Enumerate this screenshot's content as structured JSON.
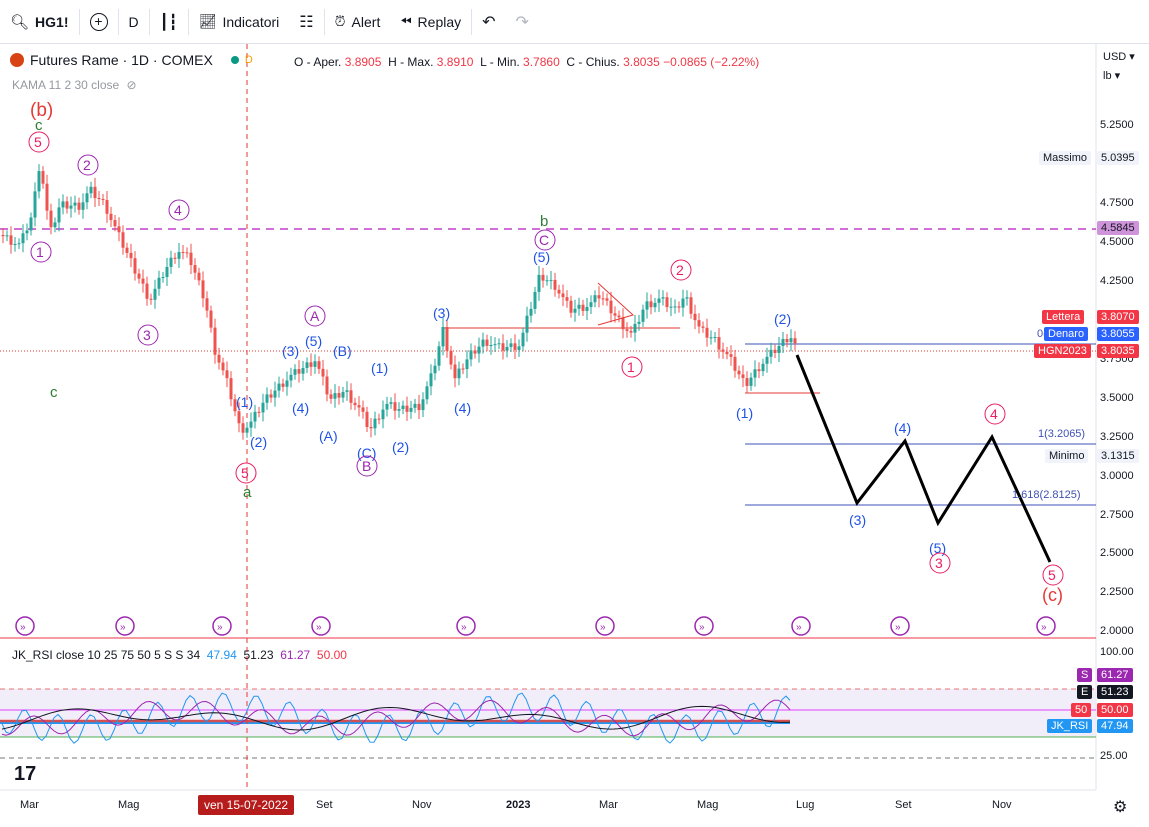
{
  "toolbar": {
    "symbol": "HG1!",
    "interval": "D",
    "indicators_label": "Indicatori",
    "alert_label": "Alert",
    "replay_label": "Replay"
  },
  "legend": {
    "title": "Futures Rame · 1D · COMEX",
    "badge": "D",
    "open_label": "O - Aper.",
    "open": "3.8905",
    "high_label": "H - Max.",
    "high": "3.8910",
    "low_label": "L - Min.",
    "low": "3.7860",
    "close_label": "C - Chius.",
    "close": "3.8035",
    "change": "−0.0865 (−2.22%)",
    "kama": "KAMA 11 2 30 close"
  },
  "rsi_legend": {
    "name": "JK_RSI close 10 25 75 50 5 S S 34",
    "v1": "47.94",
    "v2": "51.23",
    "v3": "61.27",
    "v4": "50.00"
  },
  "price_axis": {
    "currency": "USD",
    "unit": "lb",
    "ticks": [
      "5.2500",
      "4.7500",
      "4.5000",
      "4.2500",
      "3.7500",
      "3.5000",
      "3.2500",
      "3.0000",
      "2.7500",
      "2.5000",
      "2.2500",
      "2.0000"
    ],
    "labels": {
      "massimo": "Massimo",
      "massimo_val": "5.0395",
      "dash_level": "4.5845",
      "lettera": "Lettera",
      "lettera_val": "3.8070",
      "denaro": "Denaro",
      "denaro_val": "3.8055",
      "hgn": "HGN2023",
      "hgn_val": "3.8035",
      "minimo": "Minimo",
      "minimo_val": "3.1315",
      "fib1": "1(3.2065)",
      "fib1618": "1.618(2.8125)",
      "fib0": "0("
    }
  },
  "rsi_axis": {
    "ticks": [
      "100.00",
      "25.00"
    ],
    "s": "S",
    "s_val": "61.27",
    "e": "E",
    "e_val": "51.23",
    "fifty": "50",
    "fifty_val": "50.00",
    "jk": "JK_RSI",
    "jk_val": "47.94"
  },
  "time_axis": {
    "labels": [
      "Mar",
      "Mag",
      "Set",
      "Nov",
      "2023",
      "Mar",
      "Mag",
      "Lug",
      "Set",
      "Nov"
    ],
    "crosshair_date": "ven 15-07-2022"
  },
  "colors": {
    "up": "#26a69a",
    "down": "#ef5350",
    "purple": "#9c27b0",
    "blue": "#1e53e5",
    "red": "#e91e63",
    "green": "#388e3c"
  },
  "wave_labels": {
    "b_red": "(b)",
    "c_green": "c",
    "five": "5",
    "two": "2",
    "four": "4",
    "one": "1",
    "three": "3",
    "c_lone": "c",
    "A": "A",
    "B": "B",
    "a": "a",
    "b_green": "b",
    "C": "C",
    "p5": "(5)",
    "p3": "(3)",
    "p4": "(4)",
    "p1": "(1)",
    "p2": "(2)",
    "pA": "(A)",
    "pB": "(B)",
    "pC": "(C)",
    "c_red": "(c)"
  }
}
